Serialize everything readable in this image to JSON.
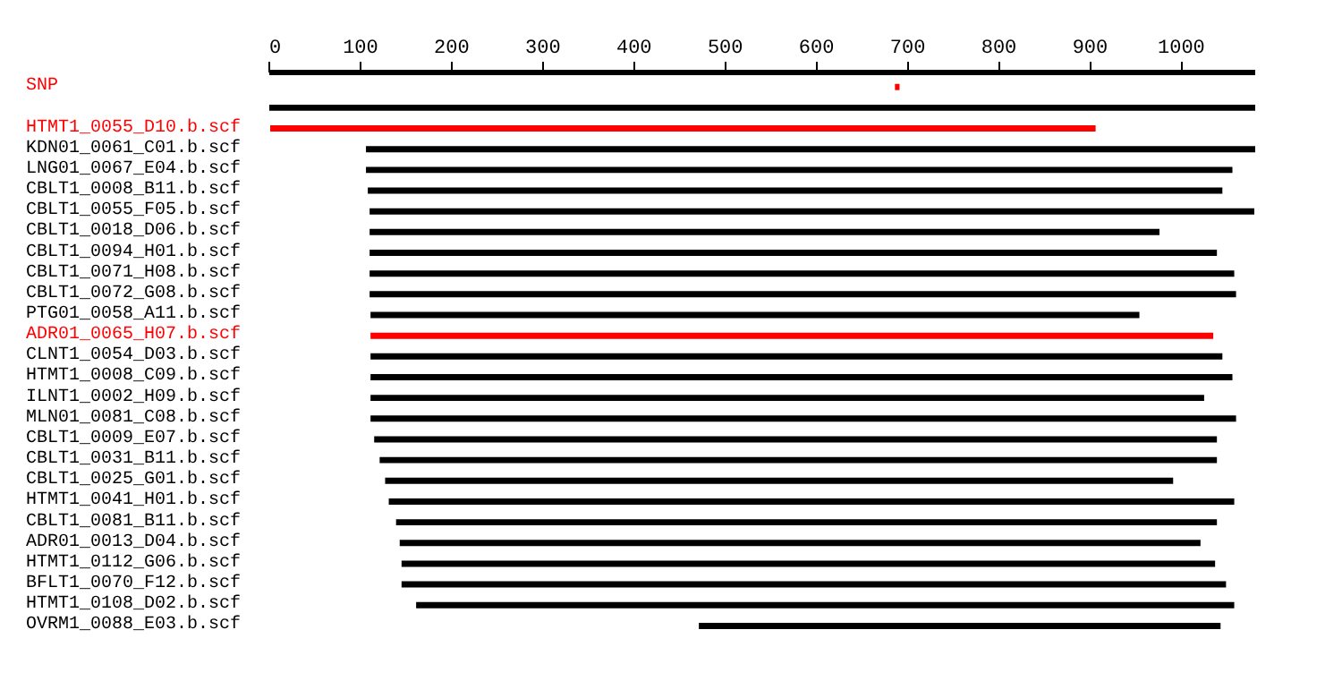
{
  "chart_data": {
    "type": "bar",
    "orientation": "horizontal",
    "categories": [
      "SNP",
      null,
      "HTMT1_0055_D10.b.scf",
      "KDN01_0061_C01.b.scf",
      "LNG01_0067_E04.b.scf",
      "CBLT1_0008_B11.b.scf",
      "CBLT1_0055_F05.b.scf",
      "CBLT1_0018_D06.b.scf",
      "CBLT1_0094_H01.b.scf",
      "CBLT1_0071_H08.b.scf",
      "CBLT1_0072_G08.b.scf",
      "PTG01_0058_A11.b.scf",
      "ADR01_0065_H07.b.scf",
      "CLNT1_0054_D03.b.scf",
      "HTMT1_0008_C09.b.scf",
      "ILNT1_0002_H09.b.scf",
      "MLN01_0081_C08.b.scf",
      "CBLT1_0009_E07.b.scf",
      "CBLT1_0031_B11.b.scf",
      "CBLT1_0025_G01.b.scf",
      "HTMT1_0041_H01.b.scf",
      "CBLT1_0081_B11.b.scf",
      "ADR01_0013_D04.b.scf",
      "HTMT1_0112_G06.b.scf",
      "BFLT1_0070_F12.b.scf",
      "HTMT1_0108_D02.b.scf",
      "OVRM1_0088_E03.b.scf"
    ],
    "base": [
      686,
      0,
      1,
      106,
      106,
      108,
      110,
      110,
      110,
      110,
      110,
      111,
      111,
      111,
      111,
      111,
      111,
      115,
      121,
      127,
      131,
      139,
      143,
      145,
      145,
      161,
      471
    ],
    "values": [
      5,
      1081,
      905,
      975,
      950,
      937,
      970,
      866,
      929,
      948,
      950,
      843,
      924,
      934,
      945,
      914,
      949,
      924,
      918,
      864,
      927,
      900,
      878,
      892,
      904,
      897,
      572
    ],
    "colors": [
      "#ff0000",
      "#000000",
      "#ff0000",
      "#000000",
      "#000000",
      "#000000",
      "#000000",
      "#000000",
      "#000000",
      "#000000",
      "#000000",
      "#000000",
      "#ff0000",
      "#000000",
      "#000000",
      "#000000",
      "#000000",
      "#000000",
      "#000000",
      "#000000",
      "#000000",
      "#000000",
      "#000000",
      "#000000",
      "#000000",
      "#000000",
      "#000000"
    ],
    "xlim": [
      0,
      1081
    ],
    "xticks": [
      0,
      100,
      200,
      300,
      400,
      500,
      600,
      700,
      800,
      900,
      1000
    ],
    "grid": false,
    "tick_labels": "x"
  }
}
